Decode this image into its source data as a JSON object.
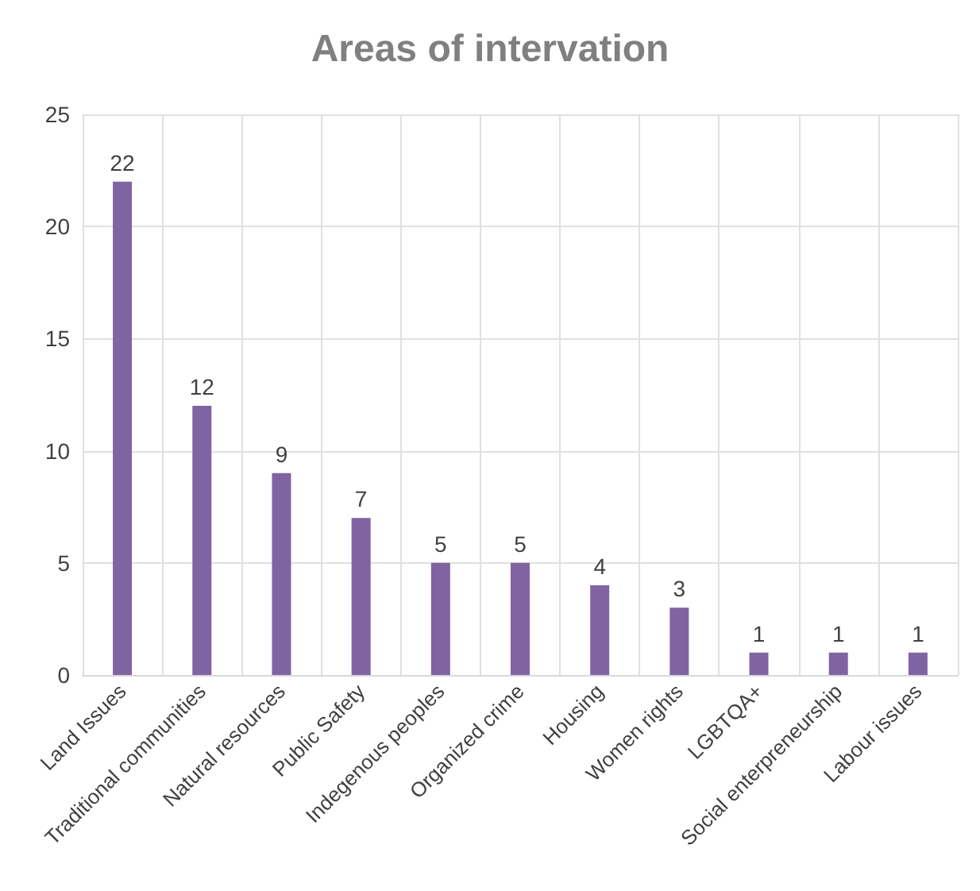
{
  "chart_data": {
    "type": "bar",
    "title": "Areas of intervation",
    "categories": [
      "Land Issues",
      "Traditional communities",
      "Natural resources",
      "Public Safety",
      "Indegenous peoples",
      "Organized crime",
      "Housing",
      "Women rights",
      "LGBTQA+",
      "Social enterpreneurship",
      "Labour issues"
    ],
    "values": [
      22,
      12,
      9,
      7,
      5,
      5,
      4,
      3,
      1,
      1,
      1
    ],
    "color": "#8064a2",
    "ylim": [
      0,
      25
    ],
    "yticks": [
      0,
      5,
      10,
      15,
      20,
      25
    ],
    "grid": true,
    "data_labels": true
  }
}
